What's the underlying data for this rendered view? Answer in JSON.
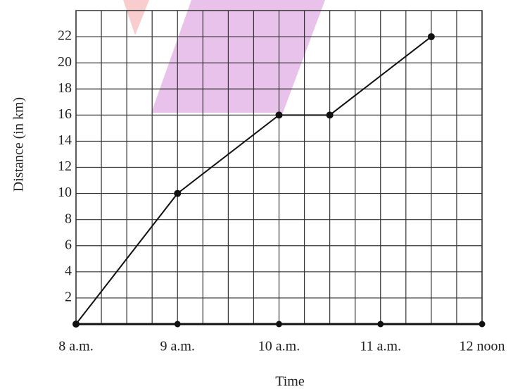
{
  "chart_data": {
    "type": "line",
    "x": [
      8,
      9,
      10,
      10.5,
      11.5
    ],
    "values": [
      0,
      10,
      16,
      16,
      22
    ],
    "color": "#111",
    "xlim": [
      8,
      12
    ],
    "xticks": [
      {
        "value": 8,
        "label": "8 a.m."
      },
      {
        "value": 9,
        "label": "9 a.m."
      },
      {
        "value": 10,
        "label": "10 a.m."
      },
      {
        "value": 11,
        "label": "11 a.m."
      },
      {
        "value": 12,
        "label": "12 noon"
      }
    ],
    "ylim": [
      0,
      24
    ],
    "yticks": [
      2,
      4,
      6,
      8,
      10,
      12,
      14,
      16,
      18,
      20,
      22
    ],
    "xlabel": "Time",
    "ylabel": "Distance (in km)",
    "grid": true
  }
}
